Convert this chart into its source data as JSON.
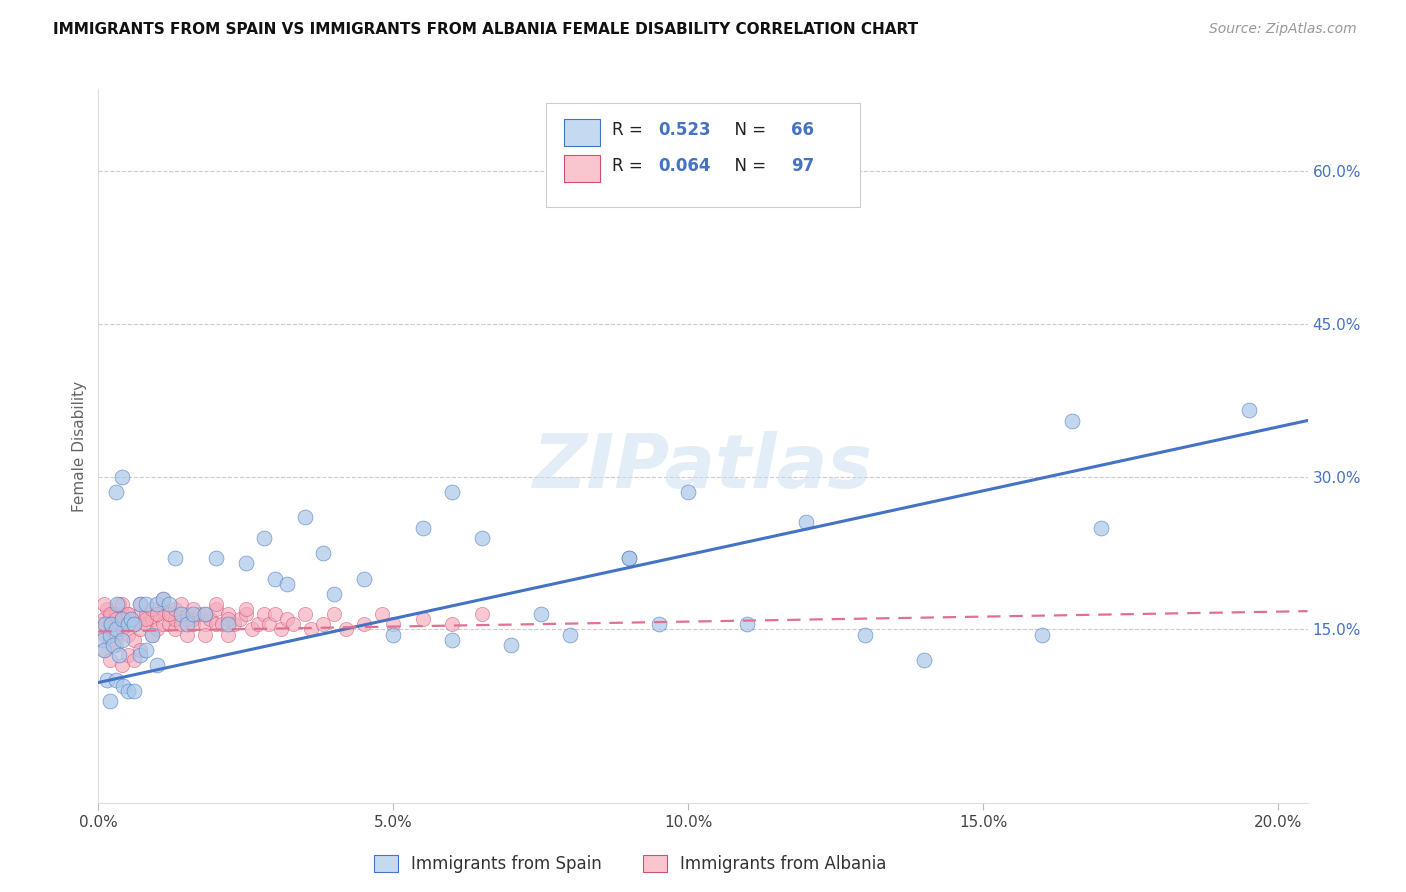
{
  "title": "IMMIGRANTS FROM SPAIN VS IMMIGRANTS FROM ALBANIA FEMALE DISABILITY CORRELATION CHART",
  "source": "Source: ZipAtlas.com",
  "ylabel": "Female Disability",
  "right_yticks": [
    0.15,
    0.3,
    0.45,
    0.6
  ],
  "right_yticklabels": [
    "15.0%",
    "30.0%",
    "45.0%",
    "60.0%"
  ],
  "xticks": [
    0.0,
    0.05,
    0.1,
    0.15,
    0.2
  ],
  "xticklabels": [
    "0.0%",
    "5.0%",
    "10.0%",
    "15.0%",
    "20.0%"
  ],
  "scatter_color_spain": "#aac8e8",
  "scatter_edge_spain": "#4472c4",
  "scatter_color_albania": "#f4aabb",
  "scatter_edge_albania": "#d05070",
  "line_color_spain": "#4472c4",
  "line_color_albania": "#e07090",
  "legend_face_spain": "#c5d9f1",
  "legend_face_albania": "#f9c6cf",
  "watermark_text": "ZIPatlas",
  "bottom_label_spain": "Immigrants from Spain",
  "bottom_label_albania": "Immigrants from Albania",
  "r_spain": "0.523",
  "n_spain": "66",
  "r_albania": "0.064",
  "n_albania": "97",
  "xlim": [
    0.0,
    0.205
  ],
  "ylim": [
    -0.02,
    0.68
  ],
  "spain_x": [
    0.0008,
    0.001,
    0.0012,
    0.0015,
    0.002,
    0.002,
    0.0022,
    0.0025,
    0.003,
    0.003,
    0.0032,
    0.0035,
    0.004,
    0.004,
    0.0042,
    0.005,
    0.005,
    0.0055,
    0.006,
    0.006,
    0.007,
    0.007,
    0.008,
    0.008,
    0.009,
    0.01,
    0.01,
    0.011,
    0.012,
    0.013,
    0.014,
    0.015,
    0.016,
    0.018,
    0.02,
    0.022,
    0.025,
    0.028,
    0.03,
    0.032,
    0.035,
    0.038,
    0.04,
    0.045,
    0.05,
    0.055,
    0.06,
    0.065,
    0.07,
    0.075,
    0.08,
    0.09,
    0.095,
    0.1,
    0.11,
    0.12,
    0.13,
    0.14,
    0.16,
    0.17,
    0.003,
    0.004,
    0.06,
    0.09,
    0.165,
    0.195
  ],
  "spain_y": [
    0.14,
    0.13,
    0.155,
    0.1,
    0.145,
    0.08,
    0.155,
    0.135,
    0.15,
    0.1,
    0.175,
    0.125,
    0.16,
    0.14,
    0.095,
    0.155,
    0.09,
    0.16,
    0.155,
    0.09,
    0.175,
    0.125,
    0.175,
    0.13,
    0.145,
    0.175,
    0.115,
    0.18,
    0.175,
    0.22,
    0.165,
    0.155,
    0.165,
    0.165,
    0.22,
    0.155,
    0.215,
    0.24,
    0.2,
    0.195,
    0.26,
    0.225,
    0.185,
    0.2,
    0.145,
    0.25,
    0.14,
    0.24,
    0.135,
    0.165,
    0.145,
    0.22,
    0.155,
    0.285,
    0.155,
    0.255,
    0.145,
    0.12,
    0.145,
    0.25,
    0.285,
    0.3,
    0.285,
    0.22,
    0.355,
    0.365
  ],
  "albania_x": [
    0.0005,
    0.001,
    0.0012,
    0.0015,
    0.002,
    0.002,
    0.0022,
    0.0025,
    0.003,
    0.003,
    0.0032,
    0.0035,
    0.004,
    0.004,
    0.0042,
    0.005,
    0.005,
    0.0055,
    0.006,
    0.006,
    0.007,
    0.007,
    0.008,
    0.008,
    0.009,
    0.009,
    0.01,
    0.01,
    0.011,
    0.011,
    0.012,
    0.012,
    0.013,
    0.013,
    0.014,
    0.015,
    0.015,
    0.016,
    0.016,
    0.017,
    0.018,
    0.018,
    0.019,
    0.02,
    0.02,
    0.021,
    0.022,
    0.022,
    0.023,
    0.024,
    0.025,
    0.026,
    0.027,
    0.028,
    0.029,
    0.03,
    0.031,
    0.032,
    0.033,
    0.035,
    0.036,
    0.038,
    0.04,
    0.042,
    0.045,
    0.048,
    0.05,
    0.055,
    0.06,
    0.065,
    0.001,
    0.002,
    0.003,
    0.004,
    0.005,
    0.006,
    0.007,
    0.008,
    0.009,
    0.01,
    0.011,
    0.012,
    0.013,
    0.014,
    0.015,
    0.016,
    0.018,
    0.02,
    0.022,
    0.025,
    0.001,
    0.002,
    0.003,
    0.004,
    0.005,
    0.006,
    0.007
  ],
  "albania_y": [
    0.155,
    0.16,
    0.145,
    0.17,
    0.155,
    0.14,
    0.165,
    0.155,
    0.165,
    0.145,
    0.155,
    0.175,
    0.165,
    0.15,
    0.155,
    0.165,
    0.145,
    0.16,
    0.155,
    0.14,
    0.165,
    0.15,
    0.165,
    0.155,
    0.16,
    0.145,
    0.165,
    0.15,
    0.155,
    0.17,
    0.155,
    0.165,
    0.15,
    0.16,
    0.155,
    0.165,
    0.145,
    0.16,
    0.155,
    0.165,
    0.155,
    0.145,
    0.16,
    0.155,
    0.17,
    0.155,
    0.145,
    0.165,
    0.155,
    0.16,
    0.165,
    0.15,
    0.155,
    0.165,
    0.155,
    0.165,
    0.15,
    0.16,
    0.155,
    0.165,
    0.15,
    0.155,
    0.165,
    0.15,
    0.155,
    0.165,
    0.155,
    0.16,
    0.155,
    0.165,
    0.175,
    0.165,
    0.16,
    0.175,
    0.165,
    0.155,
    0.175,
    0.16,
    0.17,
    0.165,
    0.18,
    0.165,
    0.17,
    0.175,
    0.16,
    0.17,
    0.165,
    0.175,
    0.16,
    0.17,
    0.13,
    0.12,
    0.135,
    0.115,
    0.125,
    0.12,
    0.13
  ],
  "spain_line_x": [
    0.0,
    0.205
  ],
  "spain_line_y": [
    0.098,
    0.355
  ],
  "albania_line_x": [
    0.0,
    0.205
  ],
  "albania_line_y": [
    0.148,
    0.168
  ]
}
